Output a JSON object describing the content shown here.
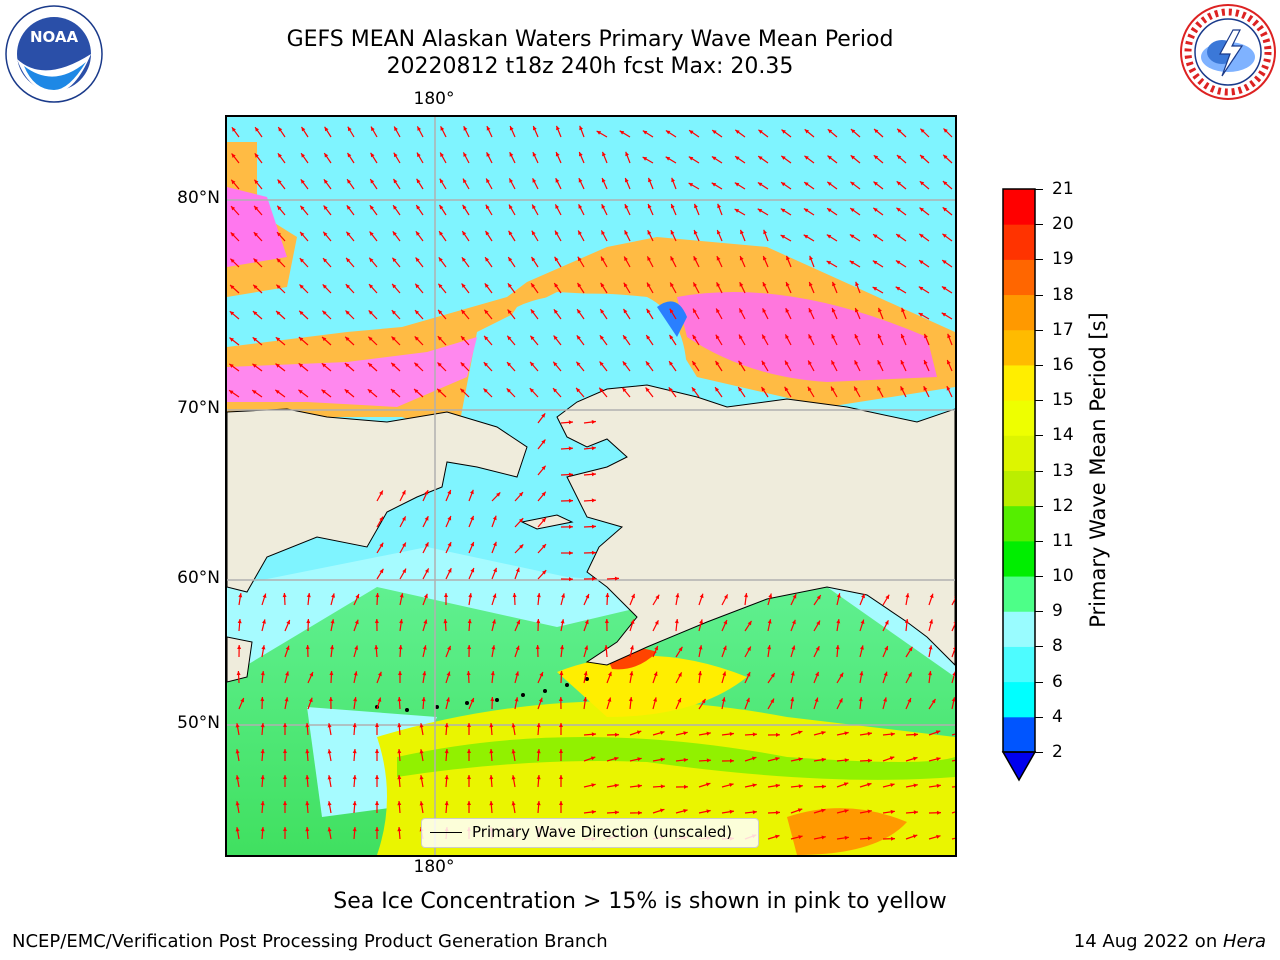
{
  "title": {
    "line1": "GEFS MEAN Alaskan Waters Primary Wave Mean Period",
    "line2": "20220812 t18z 240h fcst   Max: 20.35"
  },
  "logos": {
    "left": {
      "name": "NOAA",
      "text": "NOAA",
      "ring_text": "NATIONAL OCEANIC AND ATMOSPHERIC ADMINISTRATION · U.S. DEPARTMENT OF COMMERCE"
    },
    "right": {
      "name": "National Weather Service",
      "ring_text": "NATIONAL WEATHER SERVICE"
    }
  },
  "map": {
    "longitude_labels": {
      "top": "180°",
      "bottom": "180°"
    },
    "latitude_labels": [
      "80°N",
      "70°N",
      "60°N",
      "50°N"
    ],
    "legend": "Primary Wave Direction (unscaled)",
    "vector_color": "#ff0000",
    "land_color": "#efecdc",
    "gridline_color": "#b0b0b0"
  },
  "colorbar": {
    "label": "Primary Wave Mean Period [s]",
    "ticks": [
      "2",
      "4",
      "6",
      "8",
      "9",
      "10",
      "11",
      "12",
      "13",
      "14",
      "15",
      "16",
      "17",
      "18",
      "19",
      "20",
      "21"
    ],
    "colors": [
      "#0055ff",
      "#00ffff",
      "#4dfcff",
      "#99fcff",
      "#4dff88",
      "#00ee00",
      "#55ee00",
      "#bbee00",
      "#ddf500",
      "#eeff00",
      "#ffee00",
      "#ffbb00",
      "#ff9900",
      "#ff6600",
      "#ff3300",
      "#ff0000"
    ],
    "under_color": "#0000ee"
  },
  "note": "Sea Ice Concentration > 15% is shown in pink to yellow",
  "footer": {
    "left": "NCEP/EMC/Verification Post Processing Product Generation Branch",
    "date": "14 Aug 2022 on ",
    "host": "Hera"
  }
}
